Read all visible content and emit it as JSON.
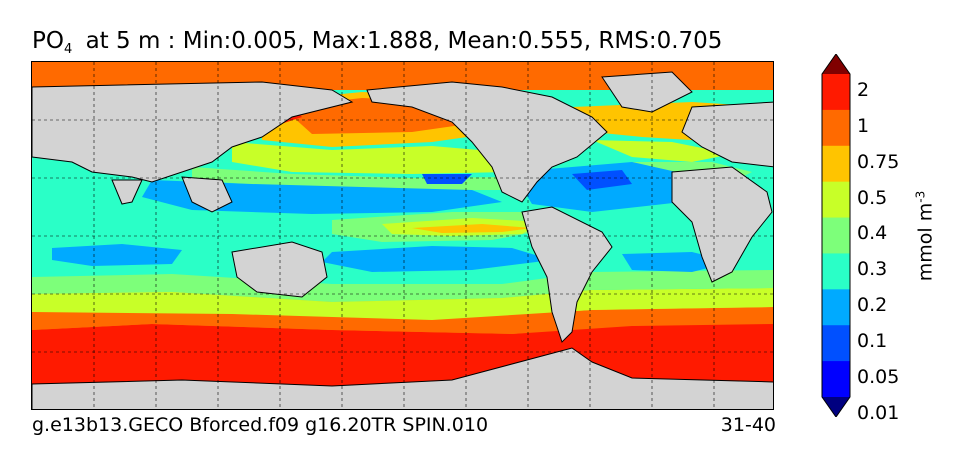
{
  "title": {
    "var_main": "PO",
    "var_sub": "4",
    "rest": "at 5 m : Min:0.005, Max:1.888, Mean:0.555, RMS:0.705"
  },
  "footer": {
    "left": "g.e13b13.GECO Bforced.f09 g16.20TR SPIN.010",
    "right": "31-40"
  },
  "colorbar": {
    "unit_main": "mmol m",
    "unit_sup": "-3",
    "tick_labels": [
      "2",
      "1",
      "0.75",
      "0.5",
      "0.4",
      "0.3",
      "0.2",
      "0.1",
      "0.05",
      "0.01"
    ],
    "colors_top_to_bottom": [
      "#800000",
      "#ff1a00",
      "#ff6a00",
      "#ffc400",
      "#c8ff28",
      "#7dff7a",
      "#2affc7",
      "#00aaff",
      "#0050ff",
      "#0000ff",
      "#000080"
    ]
  },
  "map": {
    "land_color": "#d3d3d3",
    "coast_color": "#000000",
    "grid": "dashed"
  }
}
